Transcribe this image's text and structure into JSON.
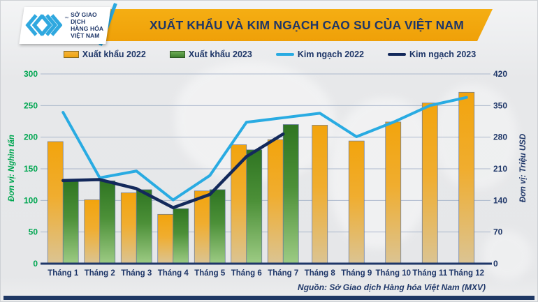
{
  "header": {
    "title": "XUẤT KHẨU VÀ KIM NGẠCH CAO SU CỦA VIỆT NAM",
    "logo": {
      "icon": "mxv-chevron-logo",
      "trademark": "™",
      "lines": [
        "SỞ GIAO DỊCH",
        "HÀNG HÓA",
        "VIỆT NAM"
      ]
    }
  },
  "legend": {
    "items": [
      {
        "label": "Xuất khẩu 2022",
        "swatch": "bar",
        "color": "#F0A30D"
      },
      {
        "label": "Xuất khẩu 2023",
        "swatch": "bar",
        "color": "#3E8030"
      },
      {
        "label": "Kim ngạch 2022",
        "swatch": "line",
        "color": "#29ABE2"
      },
      {
        "label": "Kim ngạch 2023",
        "swatch": "line",
        "color": "#13295B"
      }
    ]
  },
  "axes": {
    "left": {
      "title": "Đơn vị: Nghìn tấn",
      "ticks": [
        0,
        50,
        100,
        150,
        200,
        250,
        300
      ],
      "color": "#00A651"
    },
    "right": {
      "title": "Đơn vị: Triệu USD",
      "ticks": [
        0,
        70,
        140,
        210,
        280,
        350,
        420
      ],
      "color": "#1E3668"
    }
  },
  "chart_data": {
    "type": "bar",
    "subtype": "grouped-bars-with-lines",
    "title": "XUẤT KHẨU VÀ KIM NGẠCH CAO SU CỦA VIỆT NAM",
    "categories": [
      "Tháng 1",
      "Tháng 2",
      "Tháng 3",
      "Tháng 4",
      "Tháng 5",
      "Tháng 6",
      "Tháng 7",
      "Tháng 8",
      "Tháng 9",
      "Tháng 10",
      "Tháng 11",
      "Tháng 12"
    ],
    "series": [
      {
        "name": "Xuất khẩu 2022",
        "type": "bar",
        "axis": "left",
        "color": "#F0A30D",
        "values": [
          193,
          101,
          112,
          78,
          115,
          188,
          196,
          219,
          194,
          224,
          254,
          271
        ]
      },
      {
        "name": "Xuất khẩu 2023",
        "type": "bar",
        "axis": "left",
        "color": "#3E8030",
        "values": [
          132,
          131,
          117,
          87,
          117,
          180,
          220,
          null,
          null,
          null,
          null,
          null
        ]
      },
      {
        "name": "Kim ngạch 2022",
        "type": "line",
        "axis": "right",
        "color": "#29ABE2",
        "values": [
          335,
          190,
          205,
          141,
          195,
          313,
          323,
          333,
          281,
          313,
          350,
          368
        ]
      },
      {
        "name": "Kim ngạch 2023",
        "type": "line",
        "axis": "right",
        "color": "#13295B",
        "values": [
          184,
          186,
          166,
          124,
          153,
          237,
          287,
          null,
          null,
          null,
          null,
          null
        ]
      }
    ],
    "left_axis": {
      "label": "Đơn vị: Nghìn tấn",
      "range": [
        0,
        300
      ],
      "grid": true
    },
    "right_axis": {
      "label": "Đơn vị: Triệu USD",
      "range": [
        0,
        420
      ]
    },
    "legend_position": "top"
  },
  "source": "Nguồn: Sở Giao dịch Hàng hóa Việt Nam (MXV)"
}
